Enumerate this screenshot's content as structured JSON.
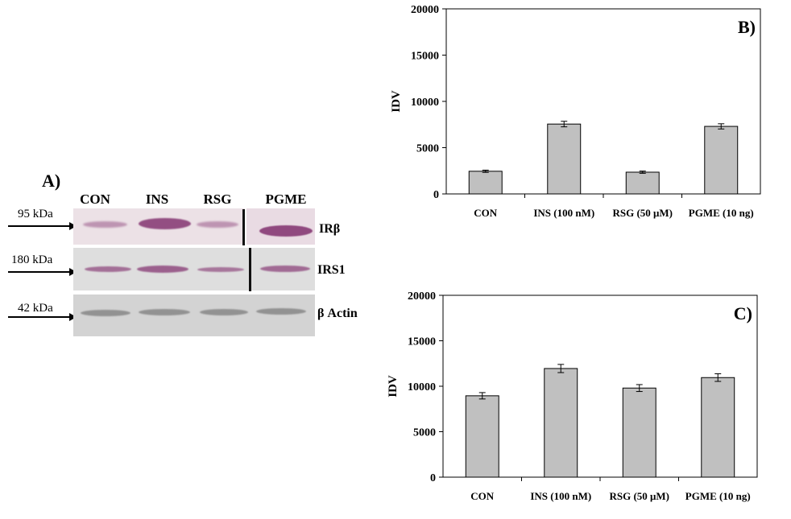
{
  "panel_a": {
    "letter": "A)",
    "lanes": [
      "CON",
      "INS",
      "RSG",
      "PGME"
    ],
    "rows": [
      {
        "mw": "95 kDa",
        "label": "IRβ",
        "intensity": [
          0.25,
          0.85,
          0.25,
          0.9
        ]
      },
      {
        "mw": "180 kDa",
        "label": "IRS1",
        "intensity": [
          0.55,
          0.7,
          0.5,
          0.6
        ]
      },
      {
        "mw": "42 kDa",
        "label": "β Actin",
        "intensity": [
          0.45,
          0.45,
          0.45,
          0.45
        ]
      }
    ],
    "colors": {
      "pink_bg": "#e8dbe2",
      "gray_bg": "#dcdcdc",
      "actin_bg": "#d0d0d0",
      "band_purple": "#8a3f78",
      "band_gray": "#6a6a6a"
    }
  },
  "chart_data": [
    {
      "type": "bar",
      "panel_letter": "B)",
      "categories": [
        "CON",
        "INS (100 nM)",
        "RSG (50 μM)",
        "PGME (10 ng)"
      ],
      "values": [
        2450,
        7550,
        2350,
        7300
      ],
      "errors": [
        120,
        300,
        120,
        280
      ],
      "ylabel": "IDV",
      "ylim": [
        0,
        20000
      ],
      "yticks": [
        "0",
        "5000",
        "10000",
        "15000",
        "20000"
      ],
      "bar_color": "#c0c0c0"
    },
    {
      "type": "bar",
      "panel_letter": "C)",
      "categories": [
        "CON",
        "INS (100 nM)",
        "RSG (50 μM)",
        "PGME (10 ng)"
      ],
      "values": [
        8950,
        11950,
        9800,
        10950
      ],
      "errors": [
        350,
        450,
        380,
        420
      ],
      "ylabel": "IDV",
      "ylim": [
        0,
        20000
      ],
      "yticks": [
        "0",
        "5000",
        "10000",
        "15000",
        "20000"
      ],
      "bar_color": "#c0c0c0"
    }
  ]
}
